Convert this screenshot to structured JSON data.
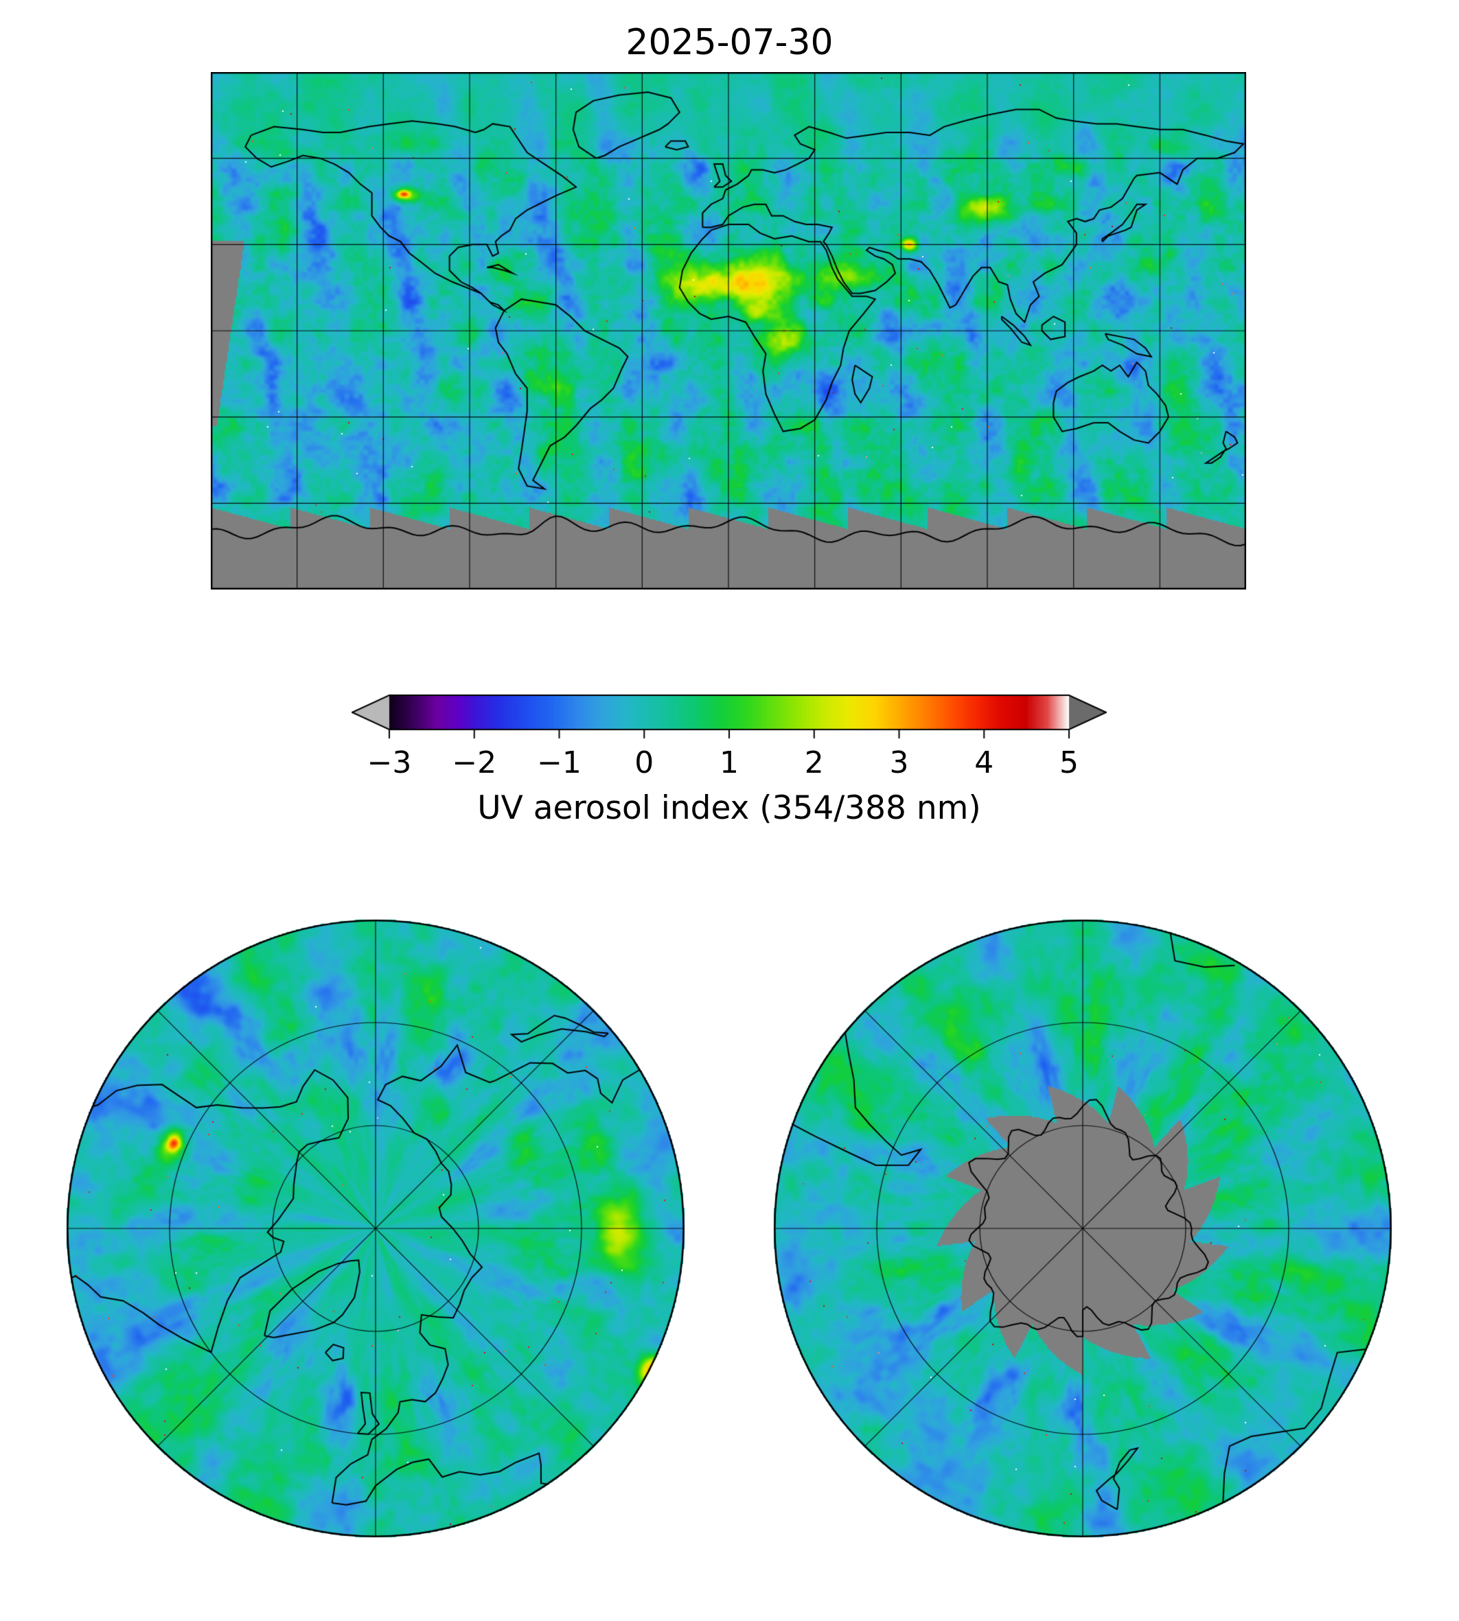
{
  "figure": {
    "title": "2025-07-30"
  },
  "colorbar": {
    "label": "UV aerosol index (354/388 nm)",
    "range": [
      -3,
      5
    ],
    "under_arrow_color": "#b9b9b9",
    "over_arrow_color": "#6b6b6b",
    "ticks": [
      {
        "value": -3,
        "label": "−3"
      },
      {
        "value": -2,
        "label": "−2"
      },
      {
        "value": -1,
        "label": "−1"
      },
      {
        "value": 0,
        "label": "0"
      },
      {
        "value": 1,
        "label": "1"
      },
      {
        "value": 2,
        "label": "2"
      },
      {
        "value": 3,
        "label": "3"
      },
      {
        "value": 4,
        "label": "4"
      },
      {
        "value": 5,
        "label": "5"
      }
    ]
  },
  "chart_data": {
    "type": "heatmap",
    "title": "2025-07-30",
    "colorbar_label": "UV aerosol index (354/388 nm)",
    "value_range": [
      -3,
      5
    ],
    "ticks": [
      -3,
      -2,
      -1,
      0,
      1,
      2,
      3,
      4,
      5
    ],
    "extend": "both",
    "no_data_color": "#7f7f7f",
    "colormap_stops": [
      [
        -3.0,
        "#0d0018"
      ],
      [
        -2.7,
        "#3c0060"
      ],
      [
        -2.45,
        "#6a00a0"
      ],
      [
        -2.2,
        "#5f00c6"
      ],
      [
        -2.0,
        "#3d14d6"
      ],
      [
        -1.7,
        "#2430e6"
      ],
      [
        -1.4,
        "#1f4cee"
      ],
      [
        -1.1,
        "#2066f0"
      ],
      [
        -0.8,
        "#2e86ea"
      ],
      [
        -0.5,
        "#2fa3de"
      ],
      [
        -0.2,
        "#24b6c8"
      ],
      [
        0.0,
        "#1bbcb4"
      ],
      [
        0.3,
        "#12c296"
      ],
      [
        0.6,
        "#0cc86e"
      ],
      [
        0.9,
        "#12ce3c"
      ],
      [
        1.2,
        "#2cd71e"
      ],
      [
        1.5,
        "#5fdf0e"
      ],
      [
        1.8,
        "#95e600"
      ],
      [
        2.1,
        "#c6ea00"
      ],
      [
        2.4,
        "#ebe900"
      ],
      [
        2.7,
        "#fdd600"
      ],
      [
        3.0,
        "#ffab00"
      ],
      [
        3.3,
        "#ff8000"
      ],
      [
        3.6,
        "#ff5300"
      ],
      [
        3.9,
        "#f72800"
      ],
      [
        4.2,
        "#e00800"
      ],
      [
        4.5,
        "#cc0000"
      ],
      [
        4.75,
        "#e04848"
      ],
      [
        5.0,
        "#ffffff"
      ]
    ],
    "panels": [
      {
        "name": "global-map",
        "projection": "equirectangular",
        "lon_range": [
          -180,
          180
        ],
        "lat_range": [
          -90,
          90
        ],
        "gridline_spacing_deg": 30,
        "typical_values": "-1 to 1 (blue / cyan / teal / green orbital swaths)",
        "elevated_regions": [
          {
            "region": "Sahara / Sahel dust plume",
            "approx_value": "2 to 3.5"
          },
          {
            "region": "central Africa biomass burning",
            "approx_value": "1.5 to 3"
          },
          {
            "region": "Arabian peninsula",
            "approx_value": "1.5 to 2.5"
          },
          {
            "region": "western North America smoke",
            "approx_value": "2 to 4"
          },
          {
            "region": "south-central Asia",
            "approx_value": "1.5 to 3"
          }
        ],
        "no_data": "gray band over Antarctica (polar night) plus a narrow orbit-gap sliver near the western map edge"
      },
      {
        "name": "north-polar-map",
        "projection": "north polar stereographic",
        "edge_latitude_deg": 30,
        "lat_circle_gridlines_deg": [
          70,
          50
        ],
        "lon_spoke_spacing_deg": 45,
        "typical_values": "-1 to 1",
        "elevated_regions": [
          {
            "region": "North American smoke sector",
            "approx_value": "2 to 3"
          },
          {
            "region": "central Asian sector",
            "approx_value": "1 to 2"
          }
        ]
      },
      {
        "name": "south-polar-map",
        "projection": "south polar stereographic",
        "edge_latitude_deg": -30,
        "lat_circle_gridlines_deg": [
          -70,
          -50
        ],
        "lon_spoke_spacing_deg": 45,
        "typical_values": "-1 to 1",
        "no_data": "gray jagged star over Antarctica interior (polar night)"
      }
    ]
  }
}
